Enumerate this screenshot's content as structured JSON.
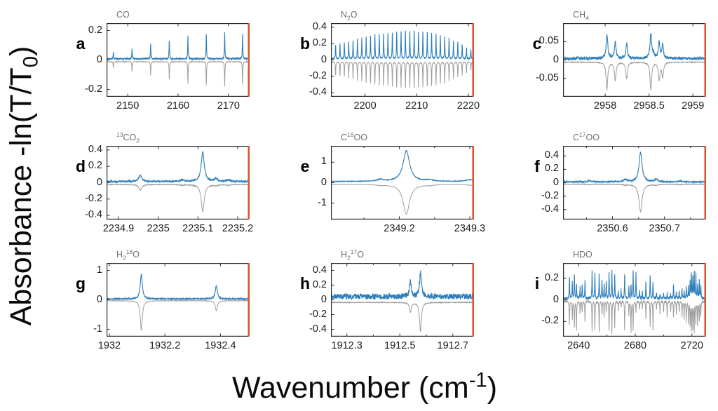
{
  "figure": {
    "ylabel_segments": [
      {
        "t": "Absorbance  -ln(T/T"
      },
      {
        "t": "0",
        "sub": true
      },
      {
        "t": ")"
      }
    ],
    "xlabel_segments": [
      {
        "t": "Wavenumber (cm"
      },
      {
        "t": "-1",
        "sup": true
      },
      {
        "t": ")"
      }
    ]
  },
  "colors": {
    "sample_trace": "#2e7ebc",
    "reference_trace": "#9e9e9e",
    "panel_border": "#2a2a2a",
    "right_axis_line": "#d9542b",
    "title_text": "#6e6e6e",
    "tick_text": "#1c1c1c"
  },
  "chart_data": [
    {
      "type": "line",
      "letter": "a",
      "title": [
        {
          "t": "CO"
        }
      ],
      "series": [
        {
          "name": "sample",
          "color": "blue"
        },
        {
          "name": "reference",
          "color": "gray",
          "inverted": true
        }
      ],
      "xlim": [
        2145.8,
        2174.2
      ],
      "ylim": [
        -0.25,
        0.25
      ],
      "xticks": [
        {
          "v": 2150,
          "l": "2150"
        },
        {
          "v": 2160,
          "l": "2160"
        },
        {
          "v": 2170,
          "l": "2170"
        }
      ],
      "xminor": [],
      "yticks": [
        {
          "v": 0.2,
          "l": "0.2"
        },
        {
          "v": 0,
          "l": "0"
        },
        {
          "v": -0.2,
          "l": "-0.2"
        }
      ],
      "hw": 0.055,
      "gray_scale": 0.95,
      "noise": 0.005,
      "noise_gray": 0.002,
      "baseline": 0.008,
      "baseline_gray": -0.012,
      "peaks": [
        [
          2147.15,
          0.045
        ],
        [
          2150.85,
          0.068
        ],
        [
          2154.55,
          0.098
        ],
        [
          2158.25,
          0.125
        ],
        [
          2161.95,
          0.158
        ],
        [
          2165.6,
          0.168
        ],
        [
          2169.25,
          0.175
        ],
        [
          2172.8,
          0.162
        ]
      ]
    },
    {
      "type": "line",
      "letter": "b",
      "title": [
        {
          "t": "N"
        },
        {
          "t": "2",
          "sub": true
        },
        {
          "t": "O"
        }
      ],
      "series": [
        {
          "name": "sample",
          "color": "blue"
        },
        {
          "name": "reference",
          "color": "gray",
          "inverted": true
        }
      ],
      "xlim": [
        2193.4,
        2221.1
      ],
      "ylim": [
        -0.45,
        0.45
      ],
      "xticks": [
        {
          "v": 2200,
          "l": "2200"
        },
        {
          "v": 2210,
          "l": "2210"
        },
        {
          "v": 2220,
          "l": "2220"
        }
      ],
      "xminor": [],
      "yticks": [
        {
          "v": 0.4,
          "l": "0.4"
        },
        {
          "v": 0.2,
          "l": "0.2"
        },
        {
          "v": 0,
          "l": "0"
        },
        {
          "v": -0.2,
          "l": "-0.2"
        },
        {
          "v": -0.4,
          "l": "-0.4"
        }
      ],
      "hw": 0.05,
      "gray_scale": 0.93,
      "noise": 0.007,
      "noise_gray": 0.003,
      "baseline": 0.015,
      "baseline_gray": -0.025,
      "peaks": [
        [
          2194.3,
          0.17
        ],
        [
          2195.15,
          0.18
        ],
        [
          2195.99,
          0.19
        ],
        [
          2196.84,
          0.21
        ],
        [
          2197.68,
          0.22
        ],
        [
          2198.53,
          0.24
        ],
        [
          2199.37,
          0.25
        ],
        [
          2200.22,
          0.27
        ],
        [
          2201.06,
          0.28
        ],
        [
          2201.91,
          0.29
        ],
        [
          2202.75,
          0.3
        ],
        [
          2203.6,
          0.31
        ],
        [
          2204.44,
          0.31
        ],
        [
          2205.29,
          0.32
        ],
        [
          2206.13,
          0.33
        ],
        [
          2206.98,
          0.33
        ],
        [
          2207.82,
          0.34
        ],
        [
          2208.67,
          0.33
        ],
        [
          2209.51,
          0.34
        ],
        [
          2210.36,
          0.33
        ],
        [
          2211.2,
          0.33
        ],
        [
          2212.05,
          0.32
        ],
        [
          2212.89,
          0.31
        ],
        [
          2213.74,
          0.3
        ],
        [
          2214.58,
          0.28
        ],
        [
          2215.43,
          0.27
        ],
        [
          2216.27,
          0.25
        ],
        [
          2217.12,
          0.22
        ],
        [
          2217.96,
          0.2
        ],
        [
          2218.81,
          0.17
        ],
        [
          2219.65,
          0.14
        ],
        [
          2220.5,
          0.11
        ]
      ]
    },
    {
      "type": "line",
      "letter": "c",
      "title": [
        {
          "t": "CH"
        },
        {
          "t": "4",
          "sub": true
        }
      ],
      "series": [
        {
          "name": "sample",
          "color": "blue"
        },
        {
          "name": "reference",
          "color": "gray",
          "inverted": true
        }
      ],
      "xlim": [
        2957.52,
        2959.15
      ],
      "ylim": [
        -0.1,
        0.1
      ],
      "xticks": [
        {
          "v": 2958,
          "l": "2958"
        },
        {
          "v": 2958.5,
          "l": "2958.5"
        },
        {
          "v": 2959,
          "l": "2959"
        }
      ],
      "xminor": [],
      "yticks": [
        {
          "v": 0.05,
          "l": "0.05"
        },
        {
          "v": 0,
          "l": "0"
        },
        {
          "v": -0.05,
          "l": "-0.05"
        }
      ],
      "hw": 0.011,
      "gray_scale": 1.12,
      "noise": 0.004,
      "noise_gray": 0.001,
      "baseline": 0.004,
      "baseline_gray": -0.006,
      "peaks": [
        [
          2958.02,
          0.066
        ],
        [
          2958.115,
          0.044
        ],
        [
          2958.245,
          0.04
        ],
        [
          2958.52,
          0.066
        ],
        [
          2958.615,
          0.042
        ],
        [
          2958.655,
          0.036
        ],
        [
          2958.55,
          0.012,
          0.0
        ]
      ]
    },
    {
      "type": "line",
      "letter": "d",
      "title": [
        {
          "t": "13",
          "sup": true
        },
        {
          "t": "CO"
        },
        {
          "t": "2",
          "sub": true
        }
      ],
      "series": [
        {
          "name": "sample",
          "color": "blue"
        },
        {
          "name": "reference",
          "color": "gray",
          "inverted": true
        }
      ],
      "xlim": [
        2234.87,
        2235.23
      ],
      "ylim": [
        -0.45,
        0.45
      ],
      "xticks": [
        {
          "v": 2234.9,
          "l": "2234.9"
        },
        {
          "v": 2235,
          "l": "2235"
        },
        {
          "v": 2235.1,
          "l": "2235.1"
        },
        {
          "v": 2235.2,
          "l": "2235.2"
        }
      ],
      "xminor": [],
      "yticks": [
        {
          "v": 0.4,
          "l": "0.4"
        },
        {
          "v": 0.2,
          "l": "0.2"
        },
        {
          "v": 0,
          "l": "0"
        },
        {
          "v": -0.2,
          "l": "-0.2"
        },
        {
          "v": -0.4,
          "l": "-0.4"
        }
      ],
      "hw": 0.0045,
      "gray_scale": 0.92,
      "noise": 0.01,
      "noise_gray": 0.004,
      "baseline": 0.015,
      "baseline_gray": -0.022,
      "peaks": [
        [
          2234.955,
          0.075,
          0.068
        ],
        [
          2235.112,
          0.36,
          0.33
        ],
        [
          2235.06,
          0.018,
          0.008
        ],
        [
          2235.145,
          0.032,
          0.012
        ],
        [
          2235.175,
          0.02,
          0.008
        ]
      ]
    },
    {
      "type": "line",
      "letter": "e",
      "title": [
        {
          "t": "C"
        },
        {
          "t": "18",
          "sup": true
        },
        {
          "t": "OO"
        }
      ],
      "series": [
        {
          "name": "sample",
          "color": "blue"
        },
        {
          "name": "reference",
          "color": "gray",
          "inverted": true
        }
      ],
      "xlim": [
        2349.103,
        2349.306
      ],
      "ylim": [
        -1.8,
        1.8
      ],
      "xticks": [
        {
          "v": 2349.2,
          "l": "2349.2"
        },
        {
          "v": 2349.3,
          "l": "2349.3"
        }
      ],
      "xminor": [
        2349.15,
        2349.25
      ],
      "yticks": [
        {
          "v": 1,
          "l": "1"
        },
        {
          "v": 0,
          "l": "0"
        },
        {
          "v": -1,
          "l": "-1"
        }
      ],
      "hw": 0.0055,
      "gray_scale": 0.95,
      "noise": 0.015,
      "noise_gray": 0.004,
      "baseline": 0.06,
      "baseline_gray": -0.08,
      "peaks": [
        [
          2349.21,
          1.5,
          1.45
        ],
        [
          2349.173,
          0.09,
          0.03
        ],
        [
          2349.243,
          0.07,
          0.03
        ],
        [
          2349.3,
          0.09,
          0.04
        ]
      ]
    },
    {
      "type": "line",
      "letter": "f",
      "title": [
        {
          "t": "C"
        },
        {
          "t": "17",
          "sup": true
        },
        {
          "t": "OO"
        }
      ],
      "series": [
        {
          "name": "sample",
          "color": "blue"
        },
        {
          "name": "reference",
          "color": "gray",
          "inverted": true
        }
      ],
      "xlim": [
        2350.505,
        2350.78
      ],
      "ylim": [
        -0.55,
        0.55
      ],
      "xticks": [
        {
          "v": 2350.6,
          "l": "2350.6"
        },
        {
          "v": 2350.7,
          "l": "2350.7"
        }
      ],
      "xminor": [
        2350.55,
        2350.65,
        2350.75
      ],
      "yticks": [
        {
          "v": 0.4,
          "l": "0.4"
        },
        {
          "v": 0.2,
          "l": "0.2"
        },
        {
          "v": 0,
          "l": "0"
        },
        {
          "v": -0.2,
          "l": "-0.2"
        },
        {
          "v": -0.4,
          "l": "-0.4"
        }
      ],
      "hw": 0.0035,
      "gray_scale": 0.95,
      "noise": 0.01,
      "noise_gray": 0.004,
      "baseline": 0.012,
      "baseline_gray": -0.022,
      "peaks": [
        [
          2350.654,
          0.435,
          0.41
        ],
        [
          2350.625,
          0.035,
          0.012
        ],
        [
          2350.684,
          0.04,
          0.015
        ],
        [
          2350.555,
          0.015,
          0.008
        ],
        [
          2350.73,
          0.012,
          0.006
        ]
      ]
    },
    {
      "type": "line",
      "letter": "g",
      "title": [
        {
          "t": "H"
        },
        {
          "t": "2",
          "sub": true
        },
        {
          "t": "18",
          "sup": true
        },
        {
          "t": "O"
        }
      ],
      "series": [
        {
          "name": "sample",
          "color": "blue"
        },
        {
          "name": "reference",
          "color": "gray",
          "inverted": true
        }
      ],
      "xlim": [
        1931.99,
        1932.505
      ],
      "ylim": [
        -1.25,
        1.25
      ],
      "xticks": [
        {
          "v": 1932,
          "l": "1932"
        },
        {
          "v": 1932.2,
          "l": "1932.2"
        },
        {
          "v": 1932.4,
          "l": "1932.4"
        }
      ],
      "xminor": [],
      "yticks": [
        {
          "v": 1,
          "l": "1"
        },
        {
          "v": 0,
          "l": "0"
        },
        {
          "v": -1,
          "l": "-1"
        }
      ],
      "hw": 0.0045,
      "gray_scale": 1.0,
      "noise": 0.022,
      "noise_gray": 0.006,
      "baseline": 0.03,
      "baseline_gray": -0.03,
      "peaks": [
        [
          1932.115,
          0.85,
          1.0
        ],
        [
          1932.385,
          0.44,
          0.34
        ]
      ]
    },
    {
      "type": "line",
      "letter": "h",
      "title": [
        {
          "t": "H"
        },
        {
          "t": "2",
          "sub": true
        },
        {
          "t": "17",
          "sup": true
        },
        {
          "t": "O"
        }
      ],
      "series": [
        {
          "name": "sample",
          "color": "blue"
        },
        {
          "name": "reference",
          "color": "gray",
          "inverted": true
        }
      ],
      "xlim": [
        1912.24,
        1912.78
      ],
      "ylim": [
        -0.5,
        0.5
      ],
      "xticks": [
        {
          "v": 1912.3,
          "l": "1912.3"
        },
        {
          "v": 1912.5,
          "l": "1912.5"
        },
        {
          "v": 1912.7,
          "l": "1912.7"
        }
      ],
      "xminor": [
        1912.4,
        1912.6
      ],
      "yticks": [
        {
          "v": 0.4,
          "l": "0.4"
        },
        {
          "v": 0.2,
          "l": "0.2"
        },
        {
          "v": 0,
          "l": "0"
        },
        {
          "v": -0.2,
          "l": "-0.2"
        },
        {
          "v": -0.4,
          "l": "-0.4"
        }
      ],
      "hw": 0.0042,
      "gray_scale": 1.0,
      "noise": 0.038,
      "noise_gray": 0.005,
      "baseline": 0.045,
      "baseline_gray": -0.035,
      "peaks": [
        [
          1912.54,
          0.2,
          0.13
        ],
        [
          1912.578,
          0.33,
          0.4
        ]
      ]
    },
    {
      "type": "line",
      "letter": "i",
      "title": [
        {
          "t": "HDO"
        }
      ],
      "series": [
        {
          "name": "sample",
          "color": "blue"
        },
        {
          "name": "reference",
          "color": "gray",
          "inverted": true
        }
      ],
      "xlim": [
        2629,
        2730
      ],
      "ylim": [
        -0.34,
        0.34
      ],
      "xticks": [
        {
          "v": 2640,
          "l": "2640"
        },
        {
          "v": 2680,
          "l": "2680"
        },
        {
          "v": 2720,
          "l": "2720"
        }
      ],
      "xminor": [
        2660,
        2700
      ],
      "yticks": [
        {
          "v": 0.2,
          "l": "0.2"
        },
        {
          "v": 0,
          "l": "0"
        },
        {
          "v": -0.2,
          "l": "-0.2"
        }
      ],
      "hw": 0.18,
      "gray_scale": 1.08,
      "noise": 0.012,
      "noise_gray": 0.01,
      "baseline": 0.012,
      "baseline_gray": -0.012,
      "peaks": [
        [
          2633.5,
          0.2,
          0.22
        ],
        [
          2635.5,
          0.15,
          0.17
        ],
        [
          2637,
          0.22,
          0.24
        ],
        [
          2638.5,
          0.12,
          0.26
        ],
        [
          2641,
          0.1,
          0.11
        ],
        [
          2642.5,
          0.13,
          0.1
        ],
        [
          2644.5,
          0.16,
          0.18
        ],
        [
          2649.5,
          0.25,
          0.27
        ],
        [
          2651.5,
          0.23,
          0.26
        ],
        [
          2654.5,
          0.22,
          0.28
        ],
        [
          2656.5,
          0.16,
          0.12
        ],
        [
          2658,
          0.12,
          0.14
        ],
        [
          2659.5,
          0.16,
          0.1
        ],
        [
          2661.5,
          0.24,
          0.27
        ],
        [
          2663.5,
          0.26,
          0.29
        ],
        [
          2665.5,
          0.22,
          0.24
        ],
        [
          2668,
          0.06,
          0.08
        ],
        [
          2670,
          0.08,
          0.06
        ],
        [
          2672.5,
          0.22,
          0.26
        ],
        [
          2675.5,
          0.11,
          0.13
        ],
        [
          2677,
          0.12,
          0.28
        ],
        [
          2678.5,
          0.25,
          0.27
        ],
        [
          2680.5,
          0.23,
          0.1
        ],
        [
          2683,
          0.07,
          0.08
        ],
        [
          2685,
          0.06,
          0.07
        ],
        [
          2687.5,
          0.15,
          0.17
        ],
        [
          2690.5,
          0.21,
          0.23
        ],
        [
          2692.5,
          0.15,
          0.26
        ],
        [
          2695,
          0.05,
          0.08
        ],
        [
          2697.5,
          0.04,
          0.12
        ],
        [
          2700,
          0.05,
          0.1
        ],
        [
          2702.5,
          0.05,
          0.14
        ],
        [
          2705,
          0.04,
          0.1
        ],
        [
          2707,
          0.12,
          0.14
        ],
        [
          2709,
          0.06,
          0.12
        ],
        [
          2711,
          0.07,
          0.1
        ],
        [
          2713,
          0.08,
          0.14
        ],
        [
          2714.5,
          0.06,
          0.16
        ],
        [
          2716,
          0.1,
          0.18
        ],
        [
          2717.5,
          0.12,
          0.2
        ],
        [
          2718.7,
          0.16,
          0.22
        ],
        [
          2719.6,
          0.23,
          0.26
        ],
        [
          2720.6,
          0.19,
          0.24
        ],
        [
          2721.6,
          0.24,
          0.28
        ],
        [
          2722.8,
          0.23,
          0.2
        ],
        [
          2724,
          0.12,
          0.22
        ],
        [
          2725.2,
          0.16,
          0.18
        ],
        [
          2726.3,
          0.12,
          0.14
        ]
      ]
    }
  ]
}
